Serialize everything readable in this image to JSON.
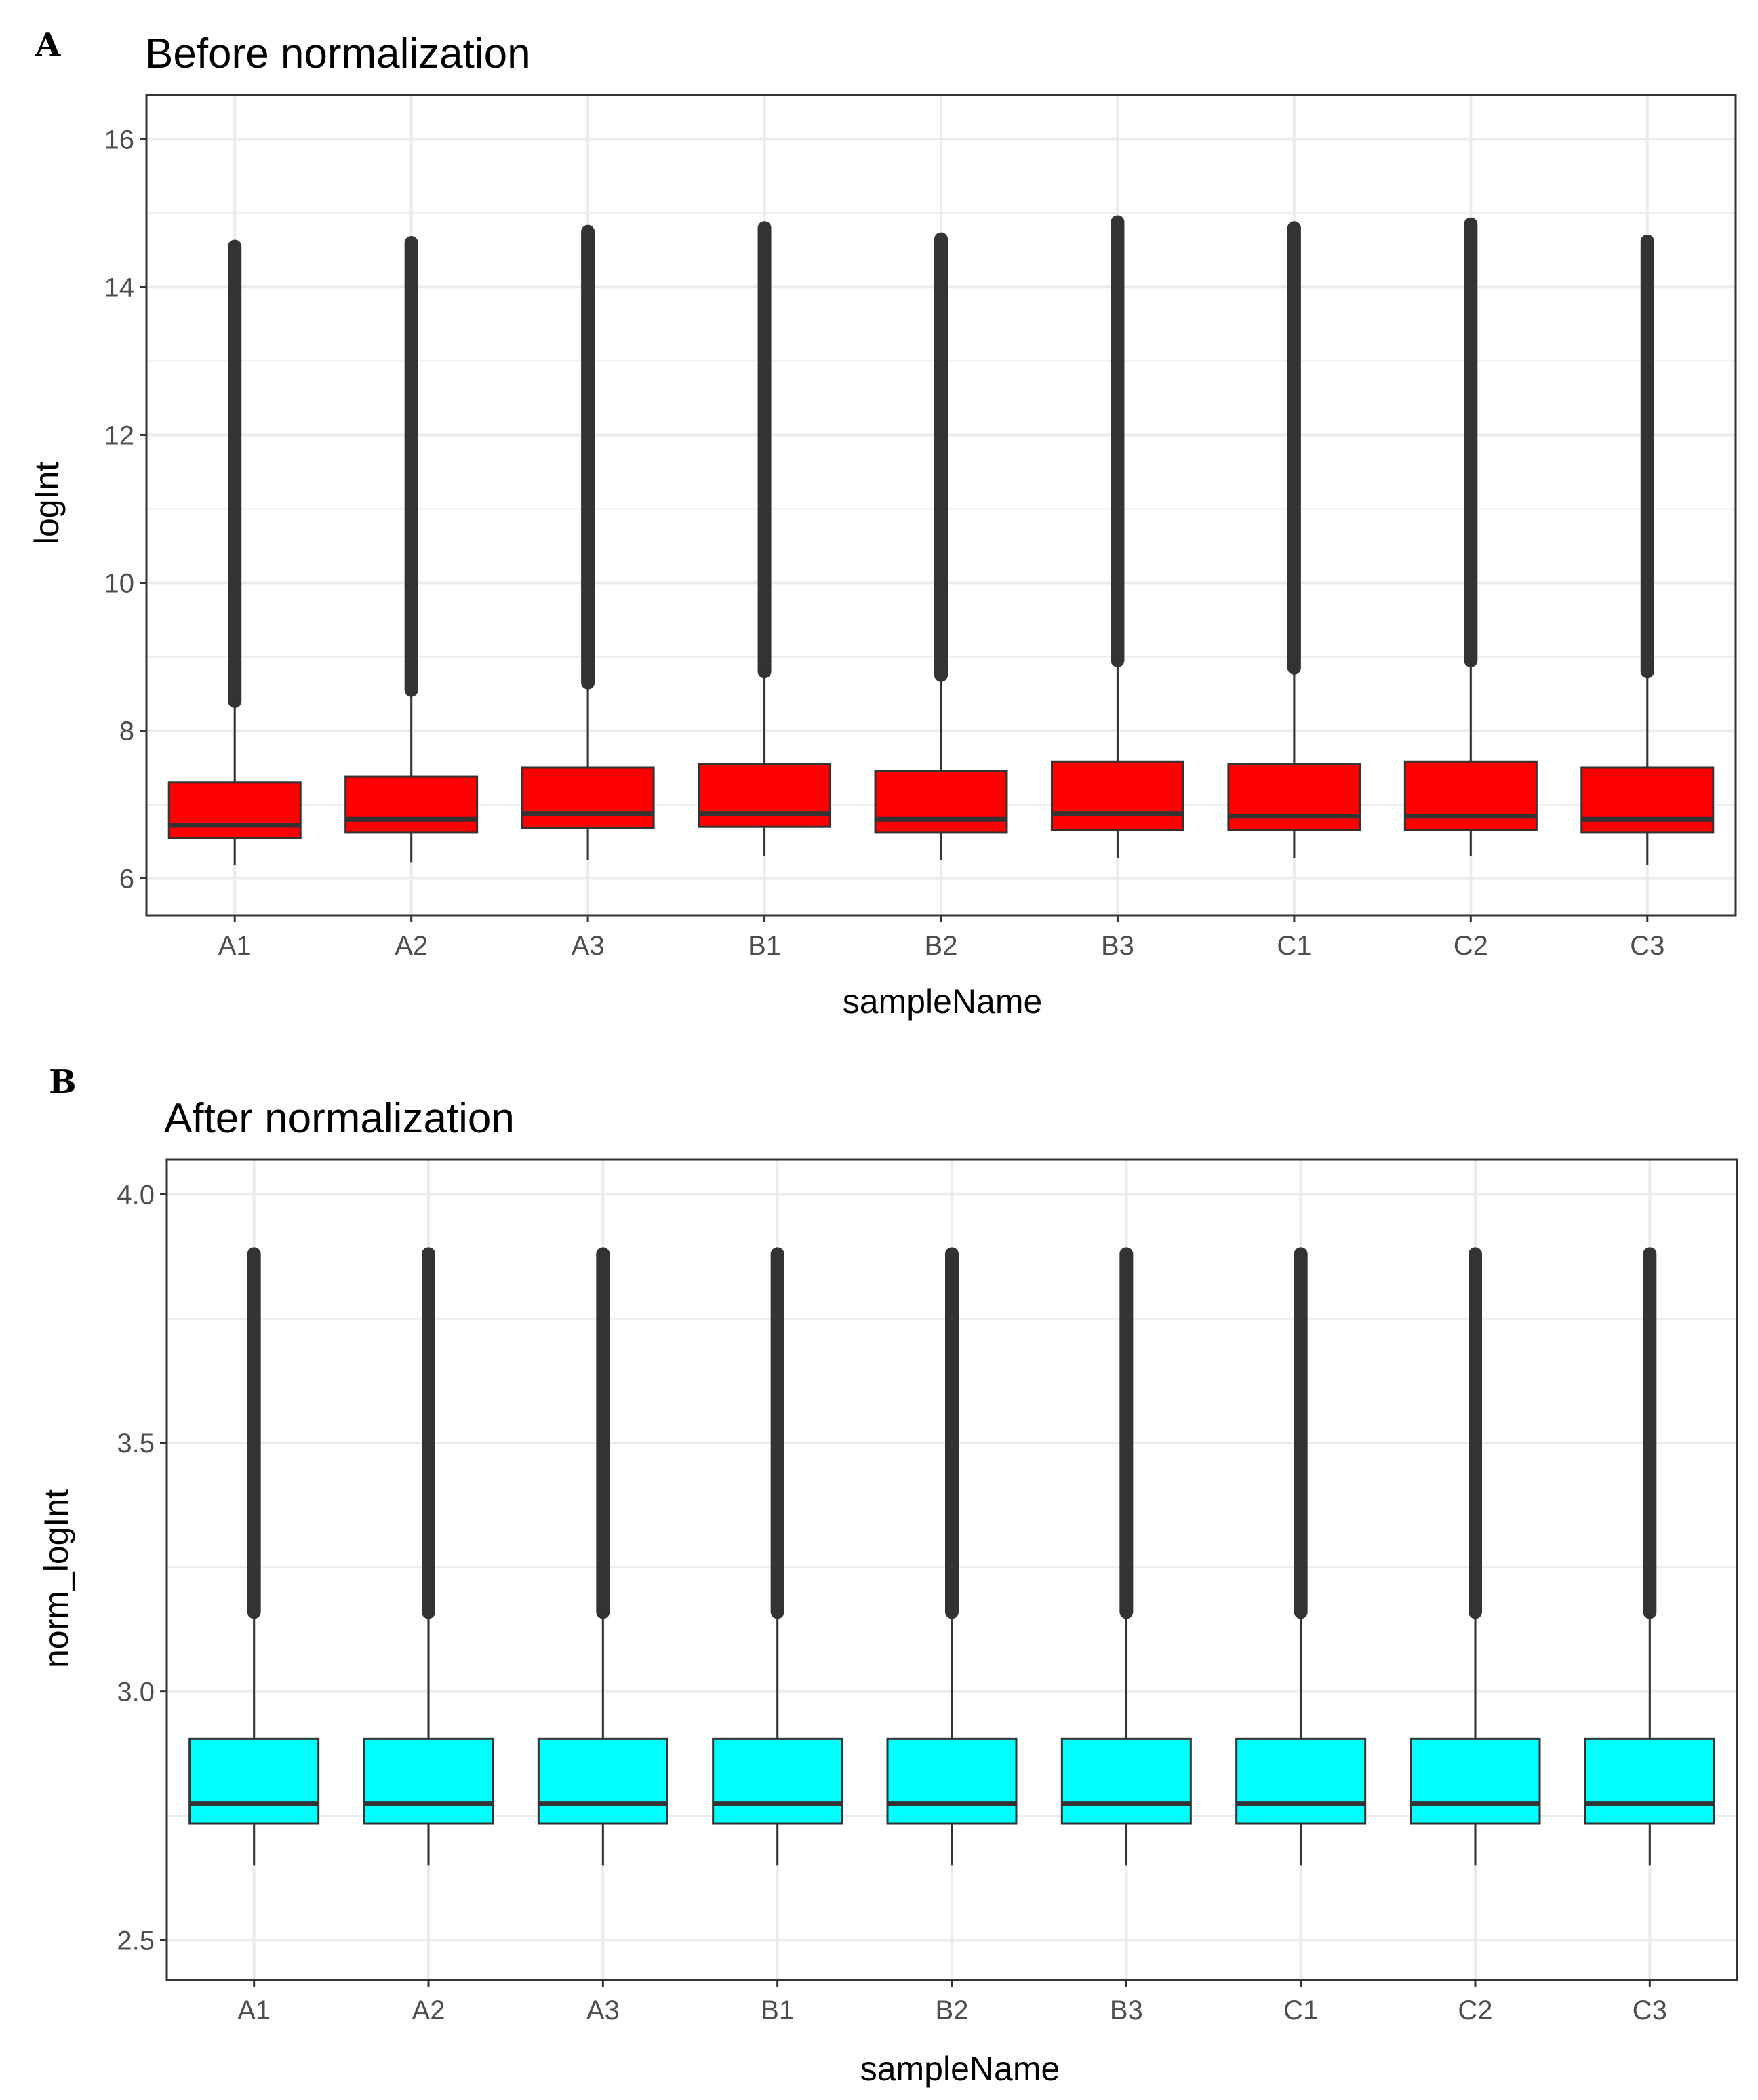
{
  "chart_data": [
    {
      "panel": "A",
      "type": "boxplot",
      "title": "Before normalization",
      "xlabel": "sampleName",
      "ylabel": "logInt",
      "ylim": [
        5.5,
        16.6
      ],
      "yticks": [
        6,
        8,
        10,
        12,
        14,
        16
      ],
      "ytick_labels": [
        "6",
        "8",
        "10",
        "12",
        "14",
        "16"
      ],
      "fill": "#ff0000",
      "categories": [
        "A1",
        "A2",
        "A3",
        "B1",
        "B2",
        "B3",
        "C1",
        "C2",
        "C3"
      ],
      "boxes": [
        {
          "lower_whisker": 6.18,
          "q1": 6.55,
          "median": 6.72,
          "q3": 7.3,
          "upper_whisker": 8.4,
          "outlier_min": 8.4,
          "outlier_max": 14.55
        },
        {
          "lower_whisker": 6.22,
          "q1": 6.62,
          "median": 6.8,
          "q3": 7.38,
          "upper_whisker": 8.55,
          "outlier_min": 8.55,
          "outlier_max": 14.6
        },
        {
          "lower_whisker": 6.25,
          "q1": 6.68,
          "median": 6.88,
          "q3": 7.5,
          "upper_whisker": 8.65,
          "outlier_min": 8.65,
          "outlier_max": 14.75
        },
        {
          "lower_whisker": 6.3,
          "q1": 6.7,
          "median": 6.88,
          "q3": 7.55,
          "upper_whisker": 8.8,
          "outlier_min": 8.8,
          "outlier_max": 14.8
        },
        {
          "lower_whisker": 6.25,
          "q1": 6.62,
          "median": 6.8,
          "q3": 7.45,
          "upper_whisker": 8.75,
          "outlier_min": 8.75,
          "outlier_max": 14.65
        },
        {
          "lower_whisker": 6.28,
          "q1": 6.66,
          "median": 6.88,
          "q3": 7.58,
          "upper_whisker": 8.95,
          "outlier_min": 8.95,
          "outlier_max": 14.88
        },
        {
          "lower_whisker": 6.28,
          "q1": 6.66,
          "median": 6.84,
          "q3": 7.55,
          "upper_whisker": 8.85,
          "outlier_min": 8.85,
          "outlier_max": 14.8
        },
        {
          "lower_whisker": 6.3,
          "q1": 6.66,
          "median": 6.84,
          "q3": 7.58,
          "upper_whisker": 8.95,
          "outlier_min": 8.95,
          "outlier_max": 14.85
        },
        {
          "lower_whisker": 6.18,
          "q1": 6.62,
          "median": 6.8,
          "q3": 7.5,
          "upper_whisker": 8.8,
          "outlier_min": 8.8,
          "outlier_max": 14.62
        }
      ]
    },
    {
      "panel": "B",
      "type": "boxplot",
      "title": "After normalization",
      "xlabel": "sampleName",
      "ylabel": "norm_logInt",
      "ylim": [
        2.42,
        4.07
      ],
      "yticks": [
        2.5,
        3.0,
        3.5,
        4.0
      ],
      "ytick_labels": [
        "2.5",
        "3.0",
        "3.5",
        "4.0"
      ],
      "fill": "#00ffff",
      "categories": [
        "A1",
        "A2",
        "A3",
        "B1",
        "B2",
        "B3",
        "C1",
        "C2",
        "C3"
      ],
      "boxes": [
        {
          "lower_whisker": 2.65,
          "q1": 2.735,
          "median": 2.775,
          "q3": 2.905,
          "upper_whisker": 3.16,
          "outlier_min": 3.16,
          "outlier_max": 3.88
        },
        {
          "lower_whisker": 2.65,
          "q1": 2.735,
          "median": 2.775,
          "q3": 2.905,
          "upper_whisker": 3.16,
          "outlier_min": 3.16,
          "outlier_max": 3.88
        },
        {
          "lower_whisker": 2.65,
          "q1": 2.735,
          "median": 2.775,
          "q3": 2.905,
          "upper_whisker": 3.16,
          "outlier_min": 3.16,
          "outlier_max": 3.88
        },
        {
          "lower_whisker": 2.65,
          "q1": 2.735,
          "median": 2.775,
          "q3": 2.905,
          "upper_whisker": 3.16,
          "outlier_min": 3.16,
          "outlier_max": 3.88
        },
        {
          "lower_whisker": 2.65,
          "q1": 2.735,
          "median": 2.775,
          "q3": 2.905,
          "upper_whisker": 3.16,
          "outlier_min": 3.16,
          "outlier_max": 3.88
        },
        {
          "lower_whisker": 2.65,
          "q1": 2.735,
          "median": 2.775,
          "q3": 2.905,
          "upper_whisker": 3.16,
          "outlier_min": 3.16,
          "outlier_max": 3.88
        },
        {
          "lower_whisker": 2.65,
          "q1": 2.735,
          "median": 2.775,
          "q3": 2.905,
          "upper_whisker": 3.16,
          "outlier_min": 3.16,
          "outlier_max": 3.88
        },
        {
          "lower_whisker": 2.65,
          "q1": 2.735,
          "median": 2.775,
          "q3": 2.905,
          "upper_whisker": 3.16,
          "outlier_min": 3.16,
          "outlier_max": 3.88
        },
        {
          "lower_whisker": 2.65,
          "q1": 2.735,
          "median": 2.775,
          "q3": 2.905,
          "upper_whisker": 3.16,
          "outlier_min": 3.16,
          "outlier_max": 3.88
        }
      ]
    }
  ],
  "colors": {
    "grid": "#ebebeb",
    "outlier": "#333333",
    "median": "#333333",
    "border": "#333333"
  }
}
